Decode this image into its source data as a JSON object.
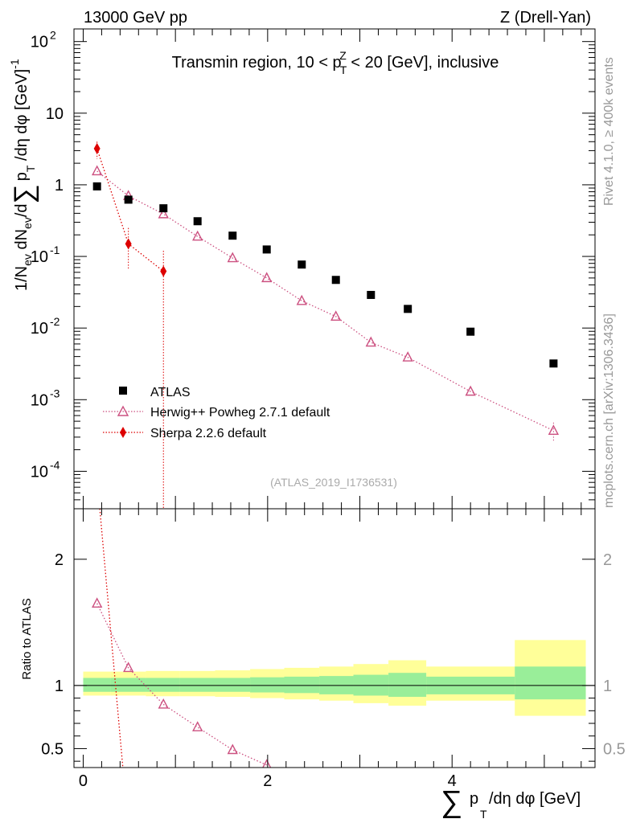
{
  "header": {
    "left": "13000 GeV pp",
    "right": "Z (Drell-Yan)"
  },
  "sidebar": {
    "rivet": "Rivet 4.1.0, ≥ 400k events",
    "source": "mcplots.cern.ch [arXiv:1306.3436]"
  },
  "chart_data": [
    {
      "type": "scatter",
      "panel": "main",
      "title": "Transmin region, 10 < pT(Z) < 20 [GeV], inclusive",
      "title_parts": {
        "a": "Transmin region, 10 < p",
        "sub": "T",
        "sup": "Z",
        "b": " < 20 [GeV], inclusive"
      },
      "watermark": "(ATLAS_2019_I1736531)",
      "ylabel": "1/N_ev dN_ev/d Σ p_T /dη dφ [GeV]^-1",
      "ylabel_parts": {
        "a": "1/N",
        "s1": "ev",
        "b": " dN",
        "s2": "ev",
        "c": "/d",
        "sum": "∑",
        "d": "p",
        "s3": "T",
        "e": " /dη dφ  [GeV]",
        "sup": "-1"
      },
      "yscale": "log",
      "ylim": [
        3e-05,
        150
      ],
      "xlim": [
        -0.1,
        5.55
      ],
      "y_tick_labels": [
        {
          "v": 100,
          "m": "10",
          "e": "2"
        },
        {
          "v": 10,
          "m": "10",
          "e": ""
        },
        {
          "v": 1,
          "m": "1",
          "e": ""
        },
        {
          "v": 0.1,
          "m": "10",
          "e": "-1"
        },
        {
          "v": 0.01,
          "m": "10",
          "e": "-2"
        },
        {
          "v": 0.001,
          "m": "10",
          "e": "-3"
        },
        {
          "v": 0.0001,
          "m": "10",
          "e": "-4"
        }
      ],
      "legend": {
        "position": "bottom-left",
        "entries": [
          "ATLAS",
          "Herwig++ Powheg 2.7.1 default",
          "Sherpa 2.2.6 default"
        ]
      },
      "series": [
        {
          "name": "ATLAS",
          "marker": "square",
          "color": "#000000",
          "x": [
            0.15,
            0.49,
            0.87,
            1.24,
            1.62,
            1.99,
            2.37,
            2.74,
            3.12,
            3.52,
            4.2,
            5.1
          ],
          "y": [
            0.95,
            0.62,
            0.47,
            0.31,
            0.195,
            0.125,
            0.077,
            0.047,
            0.029,
            0.0185,
            0.0089,
            0.0032
          ]
        },
        {
          "name": "Herwig++ Powheg 2.7.1 default",
          "marker": "open-triangle",
          "line": "dotted",
          "color": "#cc5080",
          "x": [
            0.15,
            0.49,
            0.87,
            1.24,
            1.62,
            1.99,
            2.37,
            2.74,
            3.12,
            3.52,
            4.2,
            5.1
          ],
          "y": [
            1.55,
            0.7,
            0.39,
            0.19,
            0.095,
            0.05,
            0.024,
            0.0145,
            0.0063,
            0.0039,
            0.0013,
            0.00037
          ]
        },
        {
          "name": "Sherpa 2.2.6 default",
          "marker": "filled-diamond",
          "line": "dotted",
          "color": "#dd0000",
          "x": [
            0.15,
            0.49,
            0.87
          ],
          "y": [
            3.2,
            0.15,
            0.062
          ]
        }
      ]
    },
    {
      "type": "scatter",
      "panel": "ratio",
      "ylabel": "Ratio to ATLAS",
      "xlabel": "∑ p_T /dη dφ [GeV]",
      "xlabel_parts": {
        "sum": "∑",
        "p": "p",
        "sub": "T",
        "rest": "/dη dφ [GeV]"
      },
      "ylim": [
        0.35,
        2.4
      ],
      "xlim": [
        -0.1,
        5.55
      ],
      "x_tick_labels": [
        "0",
        "2",
        "4"
      ],
      "x_tick_values": [
        0,
        2,
        4
      ],
      "y_tick_labels": [
        "2",
        "1",
        "0.5"
      ],
      "y_tick_values": [
        2,
        1,
        0.5
      ],
      "bands": {
        "edges": [
          0,
          0.3,
          0.68,
          1.05,
          1.43,
          1.81,
          2.18,
          2.56,
          2.93,
          3.31,
          3.72,
          4.68,
          5.45
        ],
        "green": [
          [
            0.95,
            1.06
          ],
          [
            0.95,
            1.06
          ],
          [
            0.95,
            1.06
          ],
          [
            0.95,
            1.06
          ],
          [
            0.95,
            1.06
          ],
          [
            0.945,
            1.065
          ],
          [
            0.94,
            1.07
          ],
          [
            0.93,
            1.075
          ],
          [
            0.92,
            1.085
          ],
          [
            0.91,
            1.1
          ],
          [
            0.93,
            1.07
          ],
          [
            0.89,
            1.15
          ]
        ],
        "yellow": [
          [
            0.92,
            1.11
          ],
          [
            0.92,
            1.11
          ],
          [
            0.915,
            1.115
          ],
          [
            0.915,
            1.115
          ],
          [
            0.91,
            1.12
          ],
          [
            0.9,
            1.13
          ],
          [
            0.89,
            1.14
          ],
          [
            0.88,
            1.15
          ],
          [
            0.86,
            1.17
          ],
          [
            0.84,
            1.2
          ],
          [
            0.88,
            1.15
          ],
          [
            0.76,
            1.36
          ]
        ]
      },
      "series": [
        {
          "name": "Herwig++ Powheg 2.7.1 default",
          "x": [
            0.15,
            0.49,
            0.87,
            1.24,
            1.62,
            1.99
          ],
          "y": [
            1.65,
            1.14,
            0.85,
            0.67,
            0.49,
            0.37
          ]
        },
        {
          "name": "Sherpa 2.2.6 default",
          "x": [
            0.18,
            0.43
          ],
          "y": [
            2.4,
            0.35
          ]
        }
      ]
    }
  ]
}
